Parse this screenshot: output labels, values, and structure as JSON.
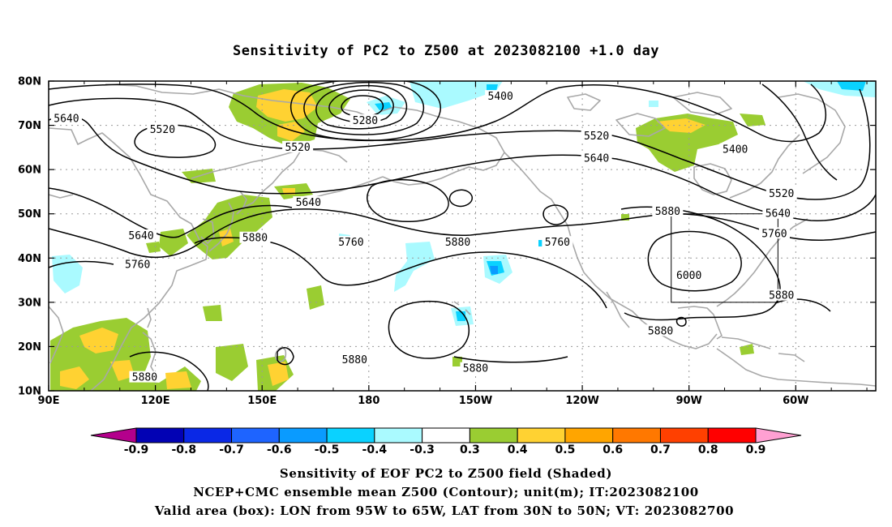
{
  "title": "Sensitivity of PC2 to Z500 at 2023082100 +1.0 day",
  "map": {
    "lat_labels": [
      "80N",
      "70N",
      "60N",
      "50N",
      "40N",
      "30N",
      "20N",
      "10N"
    ],
    "lon_labels": [
      "90E",
      "120E",
      "150E",
      "180",
      "150W",
      "120W",
      "90W",
      "60W"
    ],
    "validation_box": {
      "lon_west": -95,
      "lon_east": -65,
      "lat_south": 30,
      "lat_north": 50
    },
    "contour_labels": [
      {
        "text": "5640",
        "lon": 95,
        "lat": 71.5
      },
      {
        "text": "5520",
        "lon": 122,
        "lat": 69
      },
      {
        "text": "5280",
        "lon": 179,
        "lat": 71
      },
      {
        "text": "5400",
        "lon": -143,
        "lat": 76.5
      },
      {
        "text": "5520",
        "lon": -116,
        "lat": 67.5
      },
      {
        "text": "5520",
        "lon": 160,
        "lat": 65
      },
      {
        "text": "5640",
        "lon": -116,
        "lat": 62.5
      },
      {
        "text": "5400",
        "lon": -77,
        "lat": 64.5
      },
      {
        "text": "5640",
        "lon": 163,
        "lat": 52.5
      },
      {
        "text": "5520",
        "lon": -64,
        "lat": 54.5
      },
      {
        "text": "5640",
        "lon": 116,
        "lat": 45
      },
      {
        "text": "5880",
        "lon": 148,
        "lat": 44.5
      },
      {
        "text": "5760",
        "lon": 175,
        "lat": 43.5
      },
      {
        "text": "5880",
        "lon": -155,
        "lat": 43.5
      },
      {
        "text": "5760",
        "lon": -127,
        "lat": 43.5
      },
      {
        "text": "5880",
        "lon": -96,
        "lat": 50.5
      },
      {
        "text": "5640",
        "lon": -65,
        "lat": 50
      },
      {
        "text": "5760",
        "lon": -66,
        "lat": 45.5
      },
      {
        "text": "5760",
        "lon": 115,
        "lat": 38.5
      },
      {
        "text": "6000",
        "lon": -90,
        "lat": 36
      },
      {
        "text": "5880",
        "lon": -64,
        "lat": 31.5
      },
      {
        "text": "5880",
        "lon": -98,
        "lat": 23.5
      },
      {
        "text": "5880",
        "lon": 176,
        "lat": 17
      },
      {
        "text": "5880",
        "lon": -150,
        "lat": 15
      },
      {
        "text": "5880",
        "lon": 117,
        "lat": 13
      }
    ]
  },
  "colorbar": {
    "labels": [
      "-0.9",
      "-0.8",
      "-0.7",
      "-0.6",
      "-0.5",
      "-0.4",
      "-0.3",
      "0.3",
      "0.4",
      "0.5",
      "0.6",
      "0.7",
      "0.8",
      "0.9"
    ],
    "colors": [
      "#0202b4",
      "#0a28e6",
      "#1e64ff",
      "#0a9bff",
      "#0ad2ff",
      "#aafaff",
      "#ffffff",
      "#9acd32",
      "#ffd232",
      "#ffa500",
      "#ff7800",
      "#ff4000",
      "#ff0000"
    ],
    "low_extend_color": "#b4008c",
    "high_extend_color": "#ffa0d2"
  },
  "footer": {
    "line1": "Sensitivity of EOF PC2 to Z500 field (Shaded)",
    "line2": "NCEP+CMC ensemble mean Z500 (Contour); unit(m); IT:2023082100",
    "line3": "Valid area (box): LON from 95W to 65W, LAT from 30N to 50N; VT: 2023082700"
  }
}
